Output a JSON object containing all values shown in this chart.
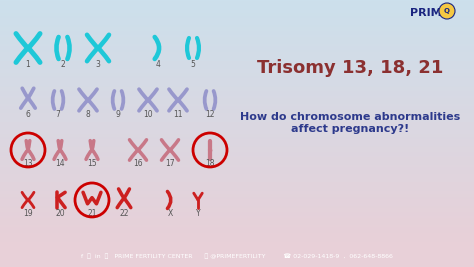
{
  "bg_top": "#dce8f0",
  "bg_bottom": "#e8d0d8",
  "footer_color": "#2d3580",
  "title": "Trisomy 13, 18, 21",
  "subtitle": "How do chromosome abnormalities\naffect pregnancy?!",
  "title_color": "#8b3030",
  "subtitle_color": "#2d3a8c",
  "footer_text": "f  y  in  ⓘ   PRIME FERTILITY CENTER        ⓘ @PRIMEFERTILITY            ☎ 02-029-1418-9  ,  062-648-8866",
  "footer_color_text": "#ffffff",
  "cyan": "#1ec8d8",
  "mauve": "#9898cc",
  "pink": "#c87888",
  "red": "#cc2020",
  "circle_color": "#cc0000",
  "logo_color": "#1a2580",
  "lbl_color": "#555555"
}
